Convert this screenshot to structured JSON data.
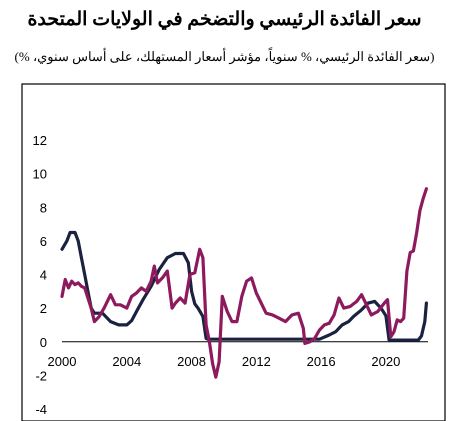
{
  "title": "سعر الفائدة الرئيسي والتضخم في الولايات المتحدة",
  "subtitle": "(سعر الفائدة الرئيسي، % سنوياً، مؤشر أسعار المستهلك، على أساس سنوي، %)",
  "chart_data": {
    "type": "line",
    "title": "سعر الفائدة الرئيسي والتضخم في الولايات المتحدة",
    "subtitle": "(سعر الفائدة الرئيسي، % سنوياً، مؤشر أسعار المستهلك، على أساس سنوي، %)",
    "xlabel": "",
    "ylabel": "",
    "xlim": [
      2000,
      2022.6
    ],
    "ylim": [
      -4,
      12
    ],
    "x_ticks": [
      2000,
      2004,
      2008,
      2012,
      2016,
      2020
    ],
    "y_ticks": [
      -4,
      -2,
      0,
      2,
      4,
      6,
      8,
      10,
      12
    ],
    "grid": false,
    "legend": "none",
    "series": [
      {
        "color": "#1a2240",
        "x": [
          2000.0,
          2000.3,
          2000.5,
          2000.8,
          2001.0,
          2001.2,
          2001.4,
          2001.6,
          2001.8,
          2002.0,
          2002.5,
          2003.0,
          2003.5,
          2004.0,
          2004.3,
          2004.6,
          2005.0,
          2005.5,
          2006.0,
          2006.5,
          2007.0,
          2007.5,
          2007.8,
          2008.0,
          2008.2,
          2008.4,
          2008.7,
          2008.9,
          2009.0,
          2012.0,
          2015.9,
          2016.5,
          2016.9,
          2017.3,
          2017.7,
          2018.0,
          2018.5,
          2018.9,
          2019.3,
          2019.7,
          2020.0,
          2020.2,
          2022.0,
          2022.2,
          2022.4,
          2022.5
        ],
        "y": [
          5.5,
          6.0,
          6.5,
          6.5,
          6.0,
          5.0,
          4.0,
          3.0,
          2.0,
          1.7,
          1.7,
          1.2,
          1.0,
          1.0,
          1.25,
          1.8,
          2.5,
          3.3,
          4.3,
          5.0,
          5.25,
          5.25,
          4.7,
          3.0,
          2.25,
          2.0,
          1.5,
          0.2,
          0.15,
          0.15,
          0.15,
          0.4,
          0.6,
          1.0,
          1.2,
          1.5,
          1.9,
          2.3,
          2.4,
          2.0,
          1.55,
          0.1,
          0.1,
          0.35,
          1.2,
          2.3
        ]
      },
      {
        "color": "#8e1a5e",
        "x": [
          2000.0,
          2000.2,
          2000.4,
          2000.6,
          2000.8,
          2001.0,
          2001.2,
          2001.4,
          2001.6,
          2001.8,
          2002.0,
          2002.3,
          2002.6,
          2003.0,
          2003.3,
          2003.6,
          2004.0,
          2004.3,
          2004.6,
          2004.9,
          2005.2,
          2005.5,
          2005.7,
          2005.9,
          2006.2,
          2006.5,
          2006.8,
          2007.0,
          2007.3,
          2007.6,
          2007.9,
          2008.2,
          2008.5,
          2008.7,
          2008.9,
          2009.1,
          2009.3,
          2009.5,
          2009.7,
          2009.9,
          2010.2,
          2010.5,
          2010.8,
          2011.1,
          2011.4,
          2011.7,
          2012.0,
          2012.3,
          2012.6,
          2013.0,
          2013.4,
          2013.8,
          2014.2,
          2014.6,
          2014.9,
          2015.0,
          2015.3,
          2015.6,
          2015.9,
          2016.2,
          2016.5,
          2016.8,
          2017.1,
          2017.4,
          2017.8,
          2018.2,
          2018.5,
          2018.8,
          2019.1,
          2019.5,
          2019.9,
          2020.1,
          2020.3,
          2020.5,
          2020.7,
          2020.9,
          2021.1,
          2021.3,
          2021.5,
          2021.7,
          2021.9,
          2022.1,
          2022.3,
          2022.5
        ],
        "y": [
          2.7,
          3.7,
          3.2,
          3.6,
          3.4,
          3.5,
          3.3,
          3.2,
          2.6,
          2.0,
          1.2,
          1.5,
          2.0,
          2.8,
          2.2,
          2.2,
          2.0,
          2.7,
          2.9,
          3.2,
          3.0,
          3.6,
          4.5,
          3.5,
          3.8,
          4.2,
          2.0,
          2.3,
          2.6,
          2.3,
          4.0,
          4.1,
          5.5,
          5.0,
          1.0,
          0.0,
          -1.3,
          -2.1,
          -1.2,
          2.7,
          1.8,
          1.2,
          1.2,
          2.7,
          3.6,
          3.8,
          2.9,
          2.3,
          1.7,
          1.6,
          1.4,
          1.2,
          1.6,
          1.7,
          0.8,
          -0.1,
          0.0,
          0.2,
          0.7,
          1.0,
          1.1,
          1.6,
          2.6,
          2.0,
          2.1,
          2.4,
          2.8,
          2.2,
          1.6,
          1.8,
          2.3,
          2.5,
          0.3,
          0.6,
          1.3,
          1.2,
          1.4,
          4.2,
          5.3,
          5.4,
          6.5,
          7.8,
          8.5,
          9.1
        ]
      }
    ]
  }
}
